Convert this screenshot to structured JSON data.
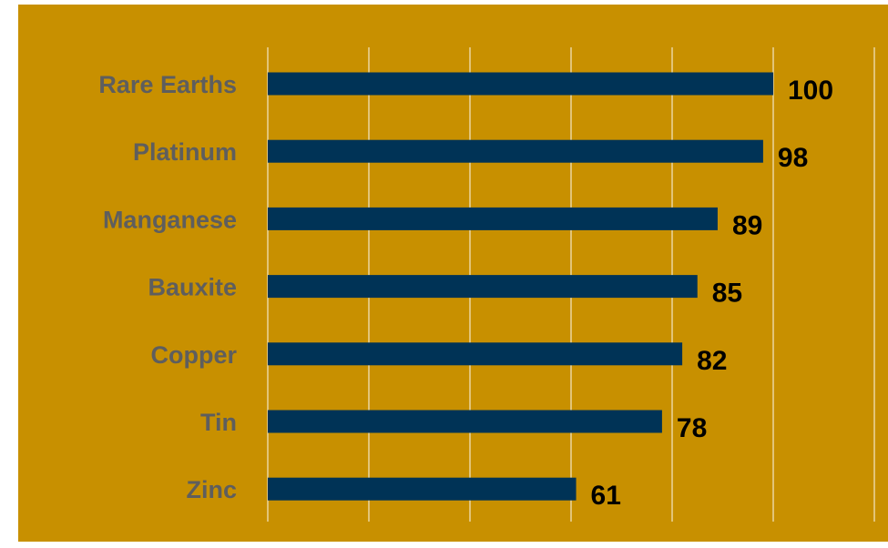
{
  "chart_data": {
    "type": "bar",
    "orientation": "horizontal",
    "categories": [
      "Rare Earths",
      "Platinum",
      "Manganese",
      "Bauxite",
      "Copper",
      "Tin",
      "Zinc"
    ],
    "values": [
      100,
      98,
      89,
      85,
      82,
      78,
      61
    ],
    "title": "",
    "xlabel": "",
    "ylabel": "",
    "xlim": [
      0,
      120
    ],
    "grid": "vertical",
    "data_labels": true,
    "legend": "none"
  },
  "colors": {
    "background": "#C89000",
    "bar": "#003356",
    "gridline": "#F2E6C8",
    "category_text": "#5E5E5E",
    "value_text": "#000000"
  }
}
